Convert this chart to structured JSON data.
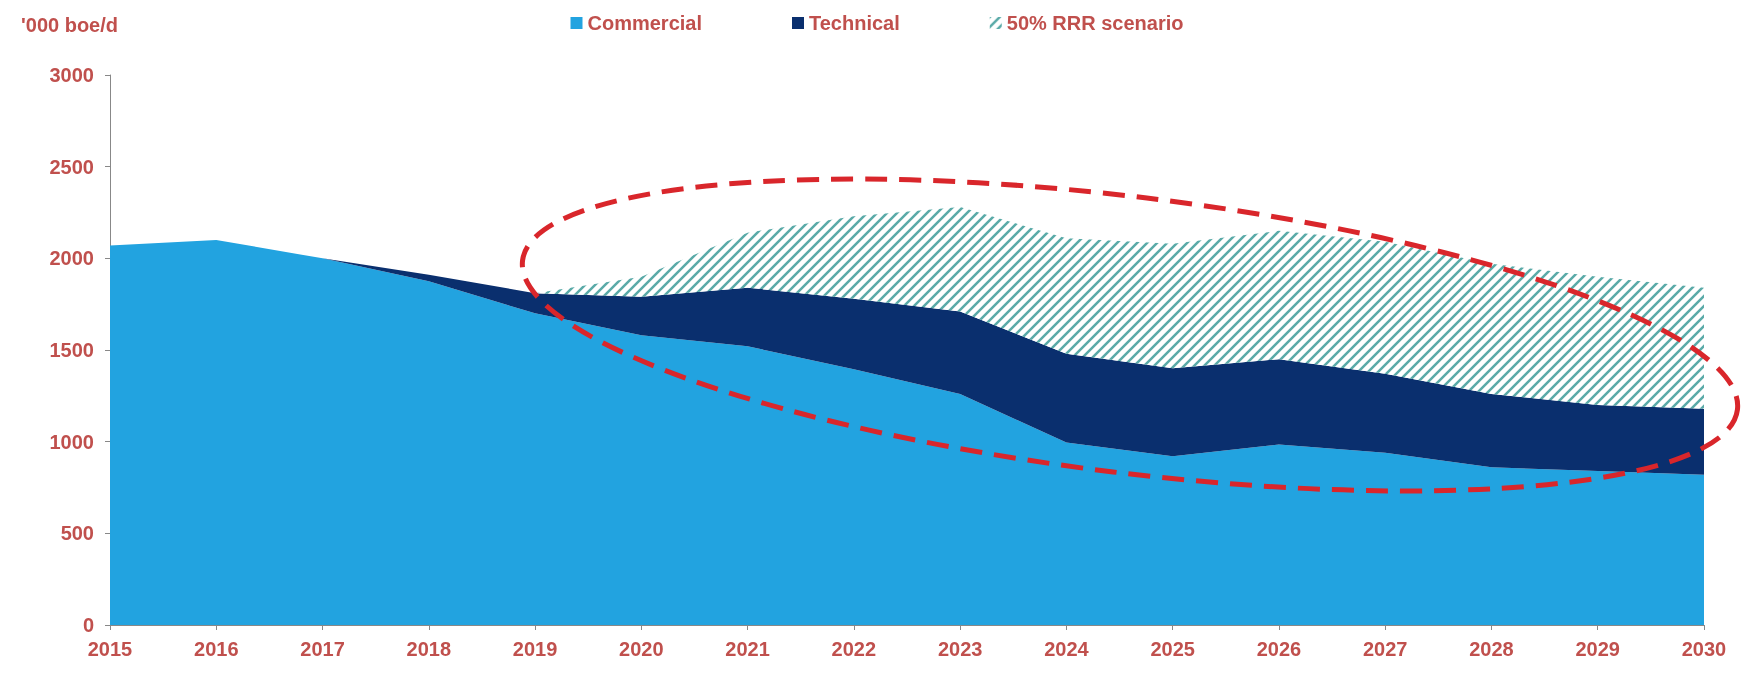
{
  "chart_data": {
    "type": "area",
    "ylabel": "'000 boe/d",
    "categories": [
      "2015",
      "2016",
      "2017",
      "2018",
      "2019",
      "2020",
      "2021",
      "2022",
      "2023",
      "2024",
      "2025",
      "2026",
      "2027",
      "2028",
      "2029",
      "2030"
    ],
    "stacked": true,
    "ylim": [
      0,
      3000
    ],
    "yticks": [
      0,
      500,
      1000,
      1500,
      2000,
      2500,
      3000
    ],
    "grid": false,
    "legend": "top",
    "series": [
      {
        "name": "Commercial",
        "color": "#22a3e0",
        "values": [
          2070,
          2100,
          2000,
          1875,
          1700,
          1580,
          1520,
          1395,
          1260,
          995,
          920,
          985,
          940,
          860,
          840,
          820
        ]
      },
      {
        "name": "Technical",
        "color": "#0a2f6e",
        "values": [
          0,
          0,
          0,
          35,
          110,
          210,
          320,
          385,
          450,
          485,
          480,
          465,
          430,
          400,
          360,
          360
        ]
      },
      {
        "name": "50% RRR scenario",
        "color": "#5aaaa8",
        "values": [
          null,
          null,
          null,
          null,
          0,
          110,
          300,
          450,
          570,
          630,
          680,
          700,
          720,
          710,
          700,
          660
        ]
      }
    ]
  }
}
